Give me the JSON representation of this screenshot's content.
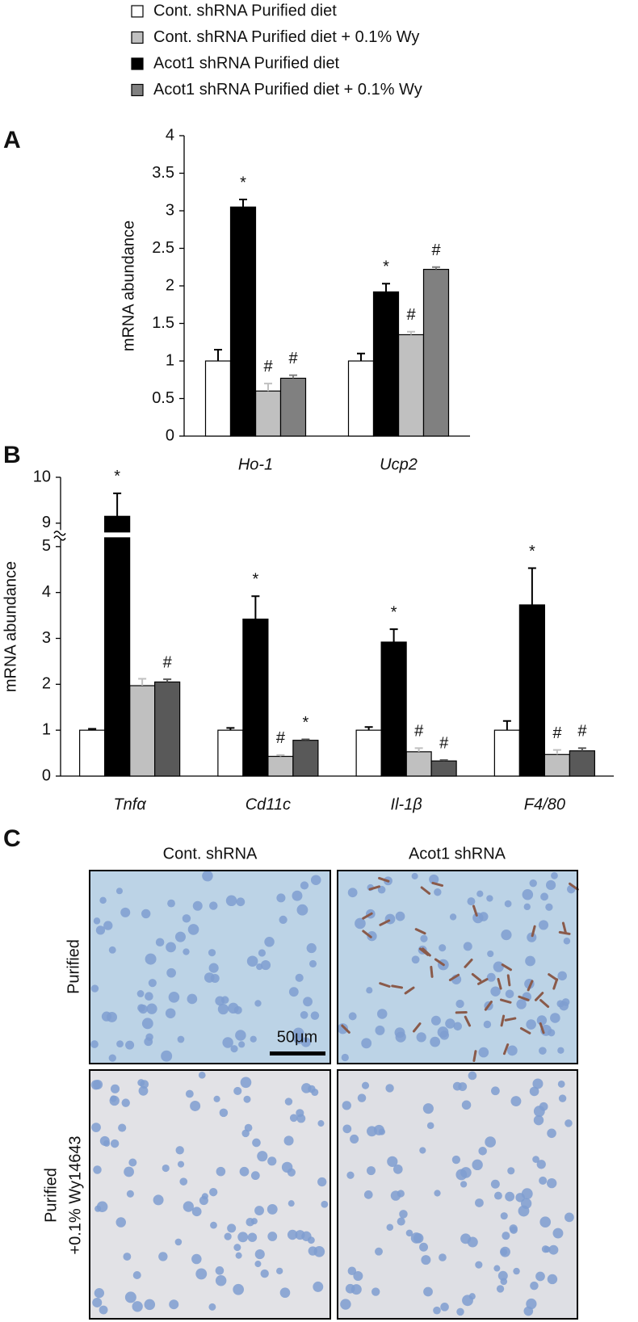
{
  "chart_data": [
    {
      "type": "bar",
      "panel": "A",
      "ylabel": "mRNA abundance",
      "categories": [
        "Ho-1",
        "Ucp2"
      ],
      "ylim": [
        0,
        4
      ],
      "yticks": [
        0,
        0.5,
        1,
        1.5,
        2,
        2.5,
        3,
        3.5,
        4
      ],
      "series": [
        {
          "name": "Cont. shRNA Purified diet",
          "color": "#ffffff",
          "values": [
            1,
            1
          ],
          "errors": [
            0.15,
            0.1
          ],
          "annotations": [
            null,
            null
          ]
        },
        {
          "name": "Cont. shRNA Purified diet + 0.1% Wy",
          "color": "#c0c0c0",
          "values": [
            0.6,
            1.35
          ],
          "errors": [
            0.1,
            0.04
          ],
          "annotations": [
            "#",
            "#"
          ]
        },
        {
          "name": "Acot1 shRNA Purified diet",
          "color": "#000000",
          "values": [
            3.05,
            1.92
          ],
          "errors": [
            0.1,
            0.11
          ],
          "annotations": [
            "*",
            "*"
          ]
        },
        {
          "name": "Acot1 shRNA Purified diet + 0.1% Wy",
          "color": "#808080",
          "values": [
            0.77,
            2.22
          ],
          "errors": [
            0.04,
            0.03
          ],
          "annotations": [
            "#",
            "#"
          ]
        }
      ]
    },
    {
      "type": "bar",
      "panel": "B",
      "ylabel": "mRNA abundance",
      "categories": [
        "Tnfα",
        "Cd11c",
        "Il-1β",
        "F4/80"
      ],
      "ylim": [
        0,
        10
      ],
      "ybreak": [
        5,
        9
      ],
      "yticks": [
        0,
        1,
        2,
        3,
        4,
        5,
        9,
        10
      ],
      "series": [
        {
          "color": "#ffffff",
          "values": [
            1,
            1,
            1,
            1
          ],
          "errors": [
            0.03,
            0.05,
            0.07,
            0.2
          ],
          "annotations": [
            null,
            null,
            null,
            null
          ]
        },
        {
          "color": "#c0c0c0",
          "values": [
            1.97,
            0.43,
            0.53,
            0.47
          ],
          "errors": [
            0.15,
            0.03,
            0.08,
            0.1
          ],
          "annotations": [
            null,
            "#",
            "#",
            "#"
          ]
        },
        {
          "color": "#000000",
          "values": [
            9.15,
            3.42,
            2.92,
            3.73
          ],
          "errors": [
            0.5,
            0.5,
            0.28,
            0.8
          ],
          "annotations": [
            "*",
            "*",
            "*",
            "*"
          ]
        },
        {
          "color": "#595959",
          "values": [
            2.05,
            0.78,
            0.33,
            0.55
          ],
          "errors": [
            0.06,
            0.02,
            0.02,
            0.06
          ],
          "annotations": [
            "#",
            "*",
            "#",
            "#"
          ]
        }
      ]
    }
  ],
  "panel_c": {
    "label": "C",
    "columns": [
      "Cont. shRNA",
      "Acot1 shRNA"
    ],
    "rows": [
      [
        "Purified"
      ],
      [
        "Purified",
        "+0.1% Wy14643"
      ]
    ],
    "scale_bar": "50μm"
  }
}
